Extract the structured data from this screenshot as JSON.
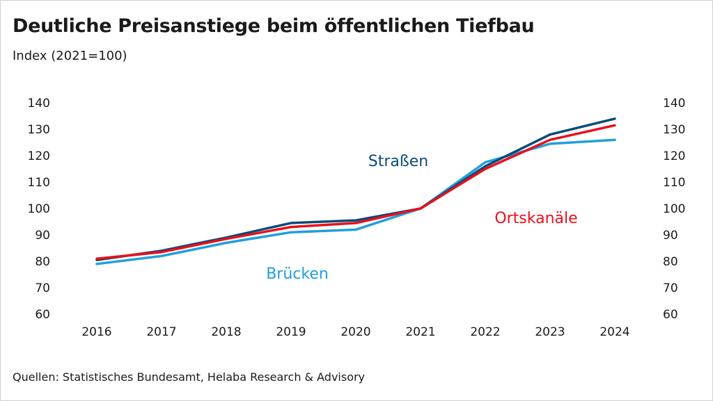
{
  "header": {
    "title": "Deutliche Preisanstiege beim öffentlichen Tiefbau",
    "subtitle": "Index (2021=100)"
  },
  "footer": {
    "source": "Quellen: Statistisches Bundesamt, Helaba Research & Advisory"
  },
  "chart_data": {
    "type": "line",
    "title": "Deutliche Preisanstiege beim öffentlichen Tiefbau",
    "subtitle": "Index (2021=100)",
    "xlabel": "",
    "ylabel": "",
    "categories": [
      "2016",
      "2017",
      "2018",
      "2019",
      "2020",
      "2021",
      "2022",
      "2023",
      "2024"
    ],
    "ylim": [
      60,
      140
    ],
    "yticks": [
      60,
      70,
      80,
      90,
      100,
      110,
      120,
      130,
      140
    ],
    "grid": false,
    "dual_y_axis": true,
    "legend": "inline labels",
    "series": [
      {
        "name": "Straßen",
        "color": "#0b4a78",
        "values": [
          80.5,
          84.0,
          89.0,
          94.5,
          95.5,
          100.0,
          116.0,
          128.0,
          134.0
        ]
      },
      {
        "name": "Ortskanäle",
        "color": "#e8101b",
        "values": [
          81.0,
          83.5,
          88.5,
          93.0,
          94.5,
          100.0,
          115.0,
          126.0,
          131.5
        ]
      },
      {
        "name": "Brücken",
        "color": "#1fa0dc",
        "values": [
          79.0,
          82.0,
          87.0,
          91.0,
          92.0,
          100.0,
          117.5,
          124.5,
          126.0
        ]
      }
    ]
  }
}
